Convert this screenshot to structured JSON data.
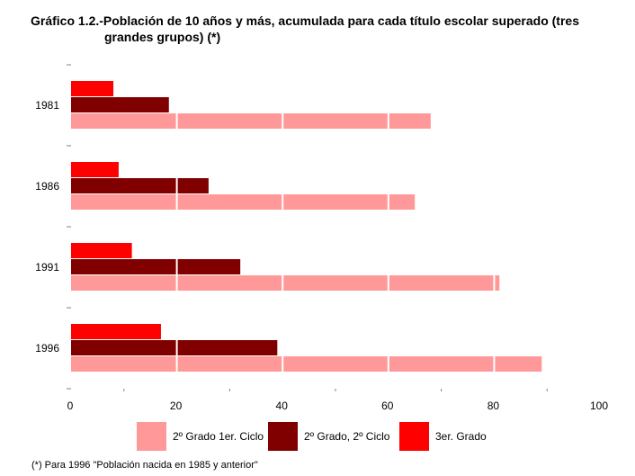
{
  "title_line1": "Gráfico 1.2.-Población de 10 años y más, acumulada para cada título escolar superado (tres",
  "title_line2": "grandes grupos) (*)",
  "footnote": "(*) Para 1996 \"Población nacida en 1985 y anterior\"",
  "colors": {
    "grado2_ciclo1": "#ff9999",
    "grado2_ciclo2": "#800000",
    "grado3": "#ff0000",
    "gridline": "#ffffff",
    "axis": "#808080"
  },
  "chart_data": {
    "type": "bar",
    "orientation": "horizontal",
    "categories": [
      "1981",
      "1986",
      "1991",
      "1996"
    ],
    "series": [
      {
        "name": "2º Grado 1er. Ciclo",
        "values": [
          68,
          65,
          81,
          89
        ]
      },
      {
        "name": "2º Grado, 2º Ciclo",
        "values": [
          18.5,
          26,
          32,
          39
        ]
      },
      {
        "name": "3er. Grado",
        "values": [
          8,
          9,
          11.5,
          17
        ]
      }
    ],
    "xlim": [
      0,
      100
    ],
    "xticks": [
      "0",
      "20",
      "40",
      "60",
      "80",
      "100"
    ],
    "grid": "vertical lines at 20, 40, 60, 80 shown only over bars",
    "legend_position": "bottom"
  }
}
